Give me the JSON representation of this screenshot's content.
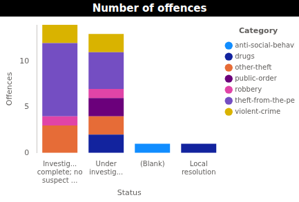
{
  "chart_data": {
    "type": "bar",
    "title": "Number of offences",
    "categories": [
      "Investig... complete; no suspect ...",
      "Under investig...",
      "(Blank)",
      "Local resolution"
    ],
    "series": [
      {
        "name": "anti-social-behaviour",
        "color": "#118DFF",
        "values": [
          0,
          0,
          1,
          0
        ]
      },
      {
        "name": "drugs",
        "color": "#12239E",
        "values": [
          0,
          2,
          0,
          1
        ]
      },
      {
        "name": "other-theft",
        "color": "#E66C37",
        "values": [
          3,
          2,
          0,
          0
        ]
      },
      {
        "name": "public-order",
        "color": "#6B007B",
        "values": [
          0,
          2,
          0,
          0
        ]
      },
      {
        "name": "robbery",
        "color": "#E044A7",
        "values": [
          1,
          1,
          0,
          0
        ]
      },
      {
        "name": "theft-from-the-person",
        "color": "#744EC2",
        "values": [
          8,
          4,
          0,
          0
        ]
      },
      {
        "name": "violent-crime",
        "color": "#D9B300",
        "values": [
          2,
          2,
          0,
          0
        ]
      }
    ],
    "x_label": "Status",
    "y_label": "Offences",
    "ylim": [
      0,
      14
    ],
    "yticks": [
      0,
      5,
      10
    ],
    "stacked": true,
    "grid": false,
    "legend": "right",
    "legend_title": "Category"
  }
}
